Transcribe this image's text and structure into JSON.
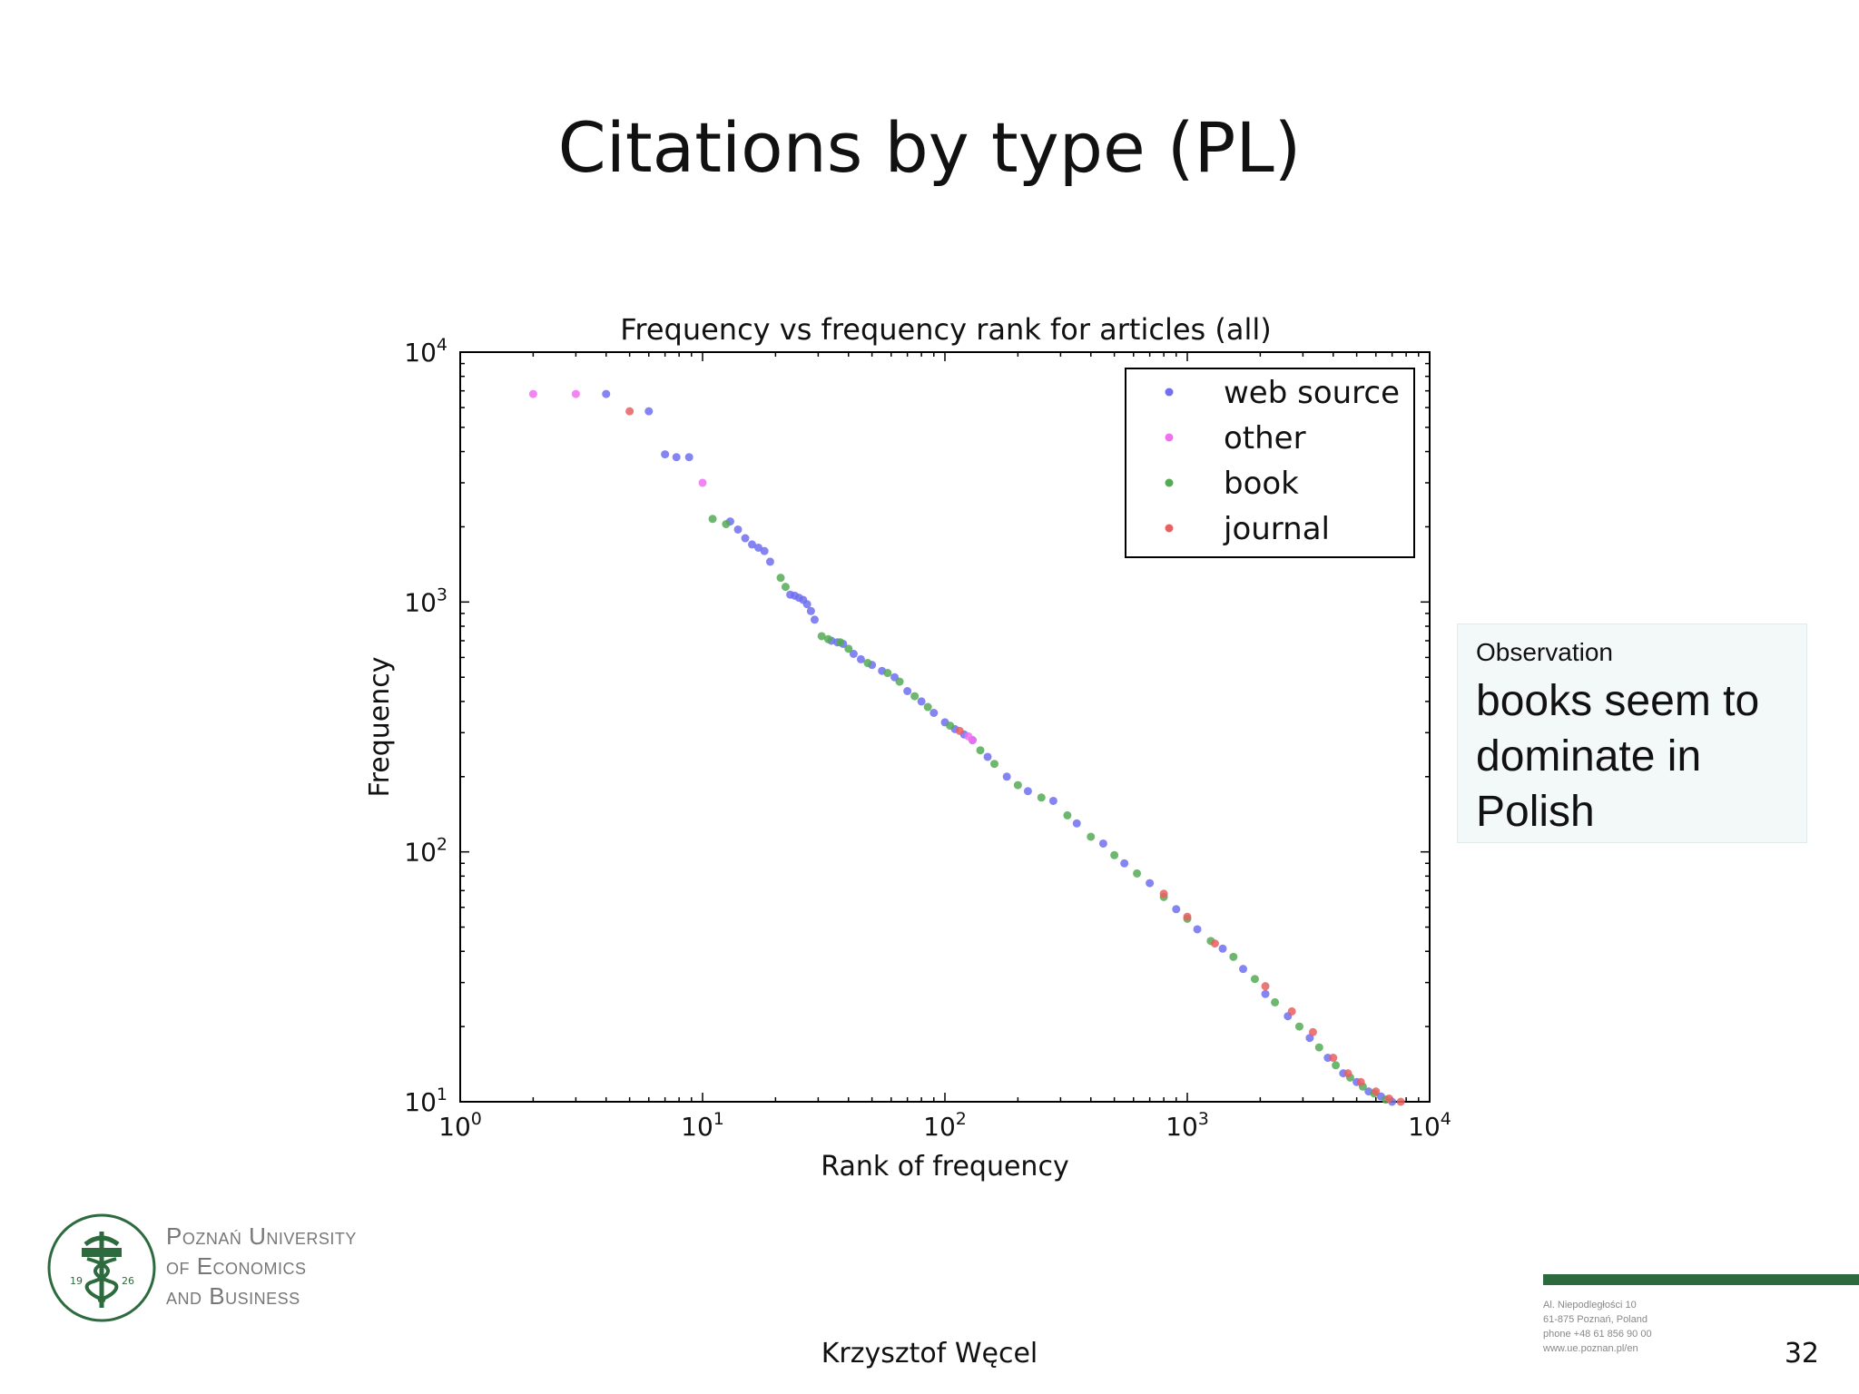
{
  "slide": {
    "title": "Citations by type (PL)",
    "author": "Krzysztof Węcel",
    "page_number": "32"
  },
  "observation": {
    "heading": "Observation",
    "text": "books seem to dominate in Polish"
  },
  "footer": {
    "university_lines": [
      "Poznań University",
      "of Economics",
      "and Business"
    ],
    "address_lines": [
      "Al. Niepodległości 10",
      "61-875 Poznań, Poland",
      "phone +48 61 856 90 00",
      "www.ue.poznan.pl/en"
    ],
    "logo_year_left": "19",
    "logo_year_right": "26",
    "accent_color": "#2d6a3d"
  },
  "chart_data": {
    "type": "scatter",
    "title": "Frequency vs frequency rank for articles (all)",
    "xlabel": "Rank of frequency",
    "ylabel": "Frequency",
    "xscale": "log",
    "yscale": "log",
    "xlim": [
      1,
      10000
    ],
    "ylim": [
      10,
      10000
    ],
    "x_ticks": [
      1,
      10,
      100,
      1000,
      10000
    ],
    "y_ticks": [
      10,
      100,
      1000,
      10000
    ],
    "x_tick_labels": [
      {
        "base": "10",
        "exp": "0"
      },
      {
        "base": "10",
        "exp": "1"
      },
      {
        "base": "10",
        "exp": "2"
      },
      {
        "base": "10",
        "exp": "3"
      },
      {
        "base": "10",
        "exp": "4"
      }
    ],
    "y_tick_labels": [
      {
        "base": "10",
        "exp": "1"
      },
      {
        "base": "10",
        "exp": "2"
      },
      {
        "base": "10",
        "exp": "3"
      },
      {
        "base": "10",
        "exp": "4"
      }
    ],
    "grid": false,
    "legend_position": "top-right",
    "series": [
      {
        "name": "web source",
        "color": "#6f6ff0",
        "points": [
          [
            4,
            6800
          ],
          [
            6,
            5800
          ],
          [
            7,
            3900
          ],
          [
            7.8,
            3800
          ],
          [
            8.8,
            3800
          ],
          [
            13,
            2100
          ],
          [
            14,
            1950
          ],
          [
            15,
            1800
          ],
          [
            16,
            1700
          ],
          [
            17,
            1650
          ],
          [
            18,
            1600
          ],
          [
            19,
            1450
          ],
          [
            23,
            1070
          ],
          [
            24,
            1060
          ],
          [
            25,
            1040
          ],
          [
            26,
            1020
          ],
          [
            27,
            980
          ],
          [
            28,
            920
          ],
          [
            29,
            850
          ],
          [
            34,
            700
          ],
          [
            36,
            690
          ],
          [
            38,
            680
          ],
          [
            42,
            620
          ],
          [
            45,
            590
          ],
          [
            50,
            560
          ],
          [
            55,
            530
          ],
          [
            62,
            500
          ],
          [
            70,
            440
          ],
          [
            80,
            400
          ],
          [
            90,
            360
          ],
          [
            100,
            330
          ],
          [
            110,
            310
          ],
          [
            120,
            295
          ],
          [
            130,
            280
          ],
          [
            150,
            240
          ],
          [
            180,
            200
          ],
          [
            220,
            175
          ],
          [
            280,
            160
          ],
          [
            350,
            130
          ],
          [
            450,
            108
          ],
          [
            550,
            90
          ],
          [
            700,
            75
          ],
          [
            900,
            59
          ],
          [
            1100,
            49
          ],
          [
            1400,
            41
          ],
          [
            1700,
            34
          ],
          [
            2100,
            27
          ],
          [
            2600,
            22
          ],
          [
            3200,
            18
          ],
          [
            3800,
            15
          ],
          [
            4400,
            13
          ],
          [
            5000,
            12
          ],
          [
            5600,
            11
          ],
          [
            6300,
            10.5
          ],
          [
            7000,
            10
          ]
        ]
      },
      {
        "name": "other",
        "color": "#f070f0",
        "points": [
          [
            2,
            6800
          ],
          [
            3,
            6800
          ],
          [
            10,
            3000
          ],
          [
            125,
            290
          ],
          [
            130,
            280
          ]
        ]
      },
      {
        "name": "book",
        "color": "#55aa55",
        "points": [
          [
            11,
            2150
          ],
          [
            12.5,
            2050
          ],
          [
            21,
            1250
          ],
          [
            22,
            1150
          ],
          [
            31,
            730
          ],
          [
            33,
            710
          ],
          [
            37,
            690
          ],
          [
            40,
            650
          ],
          [
            48,
            570
          ],
          [
            58,
            520
          ],
          [
            65,
            480
          ],
          [
            75,
            420
          ],
          [
            85,
            380
          ],
          [
            105,
            320
          ],
          [
            140,
            255
          ],
          [
            160,
            225
          ],
          [
            200,
            185
          ],
          [
            250,
            165
          ],
          [
            320,
            140
          ],
          [
            400,
            115
          ],
          [
            500,
            97
          ],
          [
            620,
            82
          ],
          [
            800,
            66
          ],
          [
            1000,
            54
          ],
          [
            1250,
            44
          ],
          [
            1550,
            38
          ],
          [
            1900,
            31
          ],
          [
            2300,
            25
          ],
          [
            2900,
            20
          ],
          [
            3500,
            16.5
          ],
          [
            4100,
            14
          ],
          [
            4700,
            12.5
          ],
          [
            5300,
            11.5
          ],
          [
            5900,
            10.8
          ],
          [
            6600,
            10.2
          ]
        ]
      },
      {
        "name": "journal",
        "color": "#e86060",
        "points": [
          [
            5,
            5800
          ],
          [
            115,
            305
          ],
          [
            800,
            68
          ],
          [
            1000,
            55
          ],
          [
            1300,
            43
          ],
          [
            2100,
            29
          ],
          [
            2700,
            23
          ],
          [
            3300,
            19
          ],
          [
            4000,
            15
          ],
          [
            4600,
            13
          ],
          [
            5200,
            12
          ],
          [
            6000,
            11
          ],
          [
            6800,
            10.3
          ],
          [
            7600,
            10
          ]
        ]
      }
    ]
  }
}
